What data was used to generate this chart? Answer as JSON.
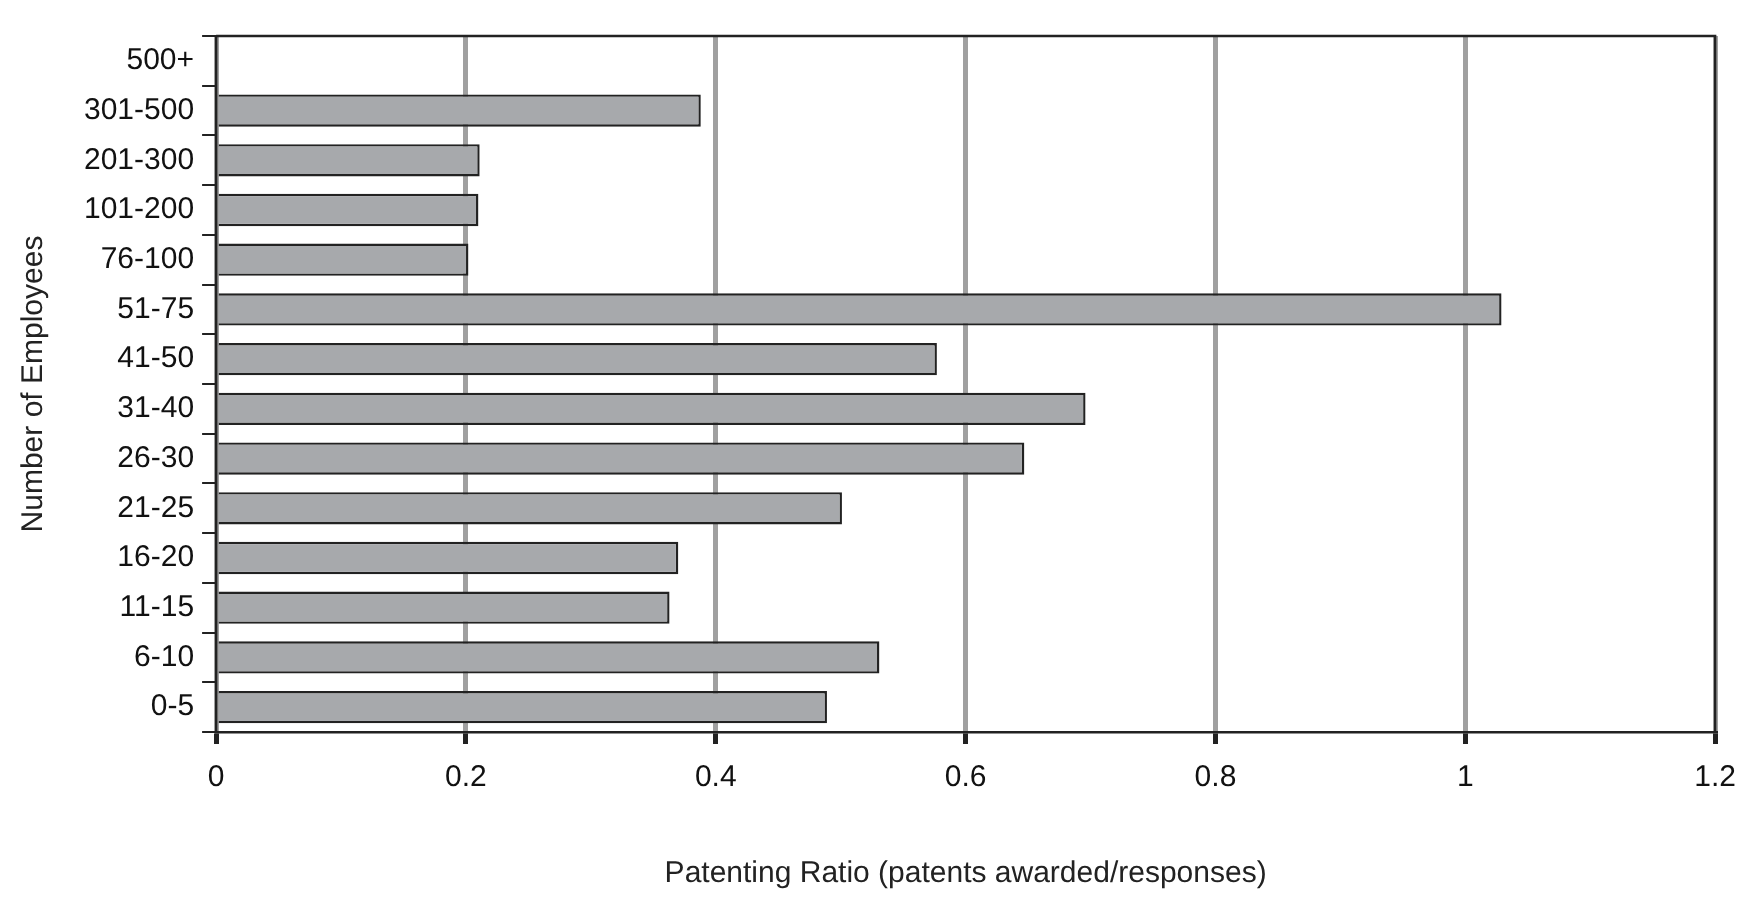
{
  "chart_data": {
    "type": "bar",
    "orientation": "horizontal",
    "xlabel": "Patenting Ratio (patents awarded/responses)",
    "ylabel": "Number of Employees",
    "categories": [
      "500+",
      "301-500",
      "201-300",
      "101-200",
      "76-100",
      "51-75",
      "41-50",
      "31-40",
      "26-30",
      "21-25",
      "16-20",
      "11-15",
      "6-10",
      "0-5"
    ],
    "values": [
      null,
      0.388,
      0.211,
      0.21,
      0.202,
      1.029,
      0.577,
      0.696,
      0.647,
      0.501,
      0.37,
      0.363,
      0.531,
      0.489
    ],
    "color": "#a7a9ac",
    "xlim": [
      0,
      1.2
    ],
    "xticks": [
      0,
      0.2,
      0.4,
      0.6,
      0.8,
      1,
      1.2
    ],
    "grid": "x",
    "legend": false
  }
}
